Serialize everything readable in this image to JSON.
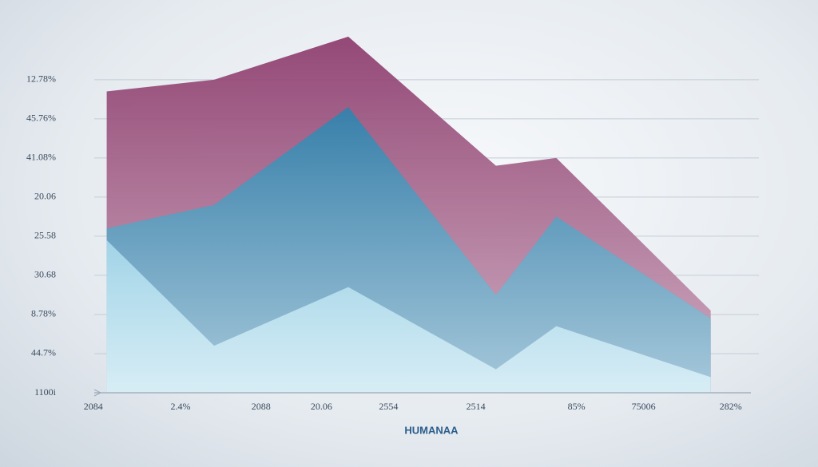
{
  "chart_data": {
    "type": "area",
    "title": "HUMANAA",
    "x": [
      0.4,
      2.0,
      4.0,
      6.2,
      7.1,
      9.4
    ],
    "xlim": [
      0,
      10
    ],
    "xticks": [
      {
        "value": 0.2,
        "label": "2084"
      },
      {
        "value": 1.5,
        "label": "2.4%"
      },
      {
        "value": 2.7,
        "label": "2088"
      },
      {
        "value": 3.6,
        "label": "20.06"
      },
      {
        "value": 4.6,
        "label": "2554"
      },
      {
        "value": 5.9,
        "label": "2514"
      },
      {
        "value": 7.4,
        "label": "85%"
      },
      {
        "value": 8.4,
        "label": "75006"
      },
      {
        "value": 9.7,
        "label": "282%"
      }
    ],
    "ylim": [
      0,
      9.2
    ],
    "yticks": [
      {
        "value": 0,
        "label": "1100i"
      },
      {
        "value": 1,
        "label": "44.7%"
      },
      {
        "value": 2,
        "label": "8.78%"
      },
      {
        "value": 3,
        "label": "30.68"
      },
      {
        "value": 4,
        "label": "25.58"
      },
      {
        "value": 5,
        "label": "20.06"
      },
      {
        "value": 6,
        "label": "41.08%"
      },
      {
        "value": 7,
        "label": "45.76%"
      },
      {
        "value": 8,
        "label": "12.78%"
      }
    ],
    "grid": true,
    "series": [
      {
        "color": "#8c3b6b",
        "values": [
          7.7,
          8.0,
          9.1,
          5.8,
          6.0,
          2.1
        ]
      },
      {
        "color": "#2f82ad",
        "values": [
          4.2,
          4.8,
          7.3,
          2.5,
          4.5,
          1.9
        ]
      },
      {
        "color": "#a6d8ea",
        "values": [
          3.9,
          1.2,
          2.7,
          0.6,
          1.7,
          0.4
        ]
      }
    ]
  }
}
